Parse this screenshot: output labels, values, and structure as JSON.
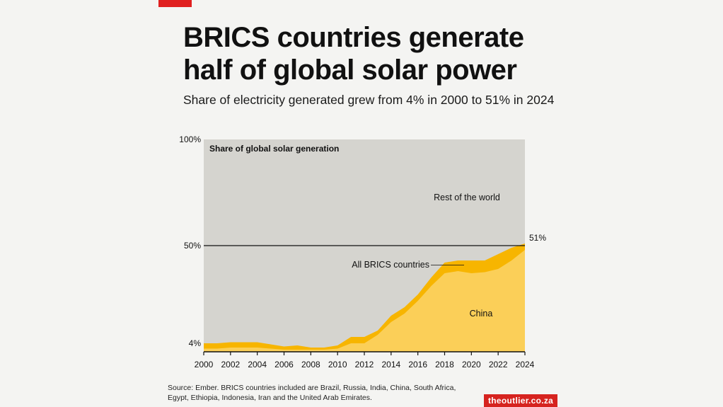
{
  "header": {
    "title_line1": "BRICS countries generate",
    "title_line2": "half of global solar power",
    "subtitle": "Share of electricity generated grew from 4% in 2000 to 51% in 2024"
  },
  "footer": {
    "source_line1": "Source: Ember. BRICS countries included are Brazil, Russia, India, China, South Africa,",
    "source_line2": "Egypt, Ethiopia, Indonesia, Iran and the United Arab Emirates.",
    "brand": "theoutlier.co.za"
  },
  "colors": {
    "accent": "#e02020",
    "rest_of_world": "#d5d4cf",
    "brics": "#f7b500",
    "china": "#fbcf58",
    "brand_bg": "#d6231f"
  },
  "chart_data": {
    "type": "area",
    "title": "Share of global solar generation",
    "x": [
      2000,
      2001,
      2002,
      2003,
      2004,
      2005,
      2006,
      2007,
      2008,
      2009,
      2010,
      2011,
      2012,
      2013,
      2014,
      2015,
      2016,
      2017,
      2018,
      2019,
      2020,
      2021,
      2022,
      2023,
      2024
    ],
    "x_ticks": [
      "2000",
      "2002",
      "2004",
      "2006",
      "2008",
      "2010",
      "2012",
      "2014",
      "2016",
      "2018",
      "2020",
      "2022",
      "2024"
    ],
    "y_ticks": [
      "100%",
      "50%",
      "4%"
    ],
    "y_tick_values": [
      100,
      50,
      4
    ],
    "ylim": [
      0,
      100
    ],
    "series": [
      {
        "name": "China",
        "values": [
          1.5,
          1.5,
          2,
          2,
          2,
          1.5,
          1,
          1,
          1,
          1,
          1.5,
          4,
          4,
          8,
          14,
          18,
          24,
          31,
          37,
          38,
          37,
          37.5,
          39,
          43,
          48
        ]
      },
      {
        "name": "All BRICS countries",
        "values": [
          4,
          4,
          4.5,
          4.5,
          4.5,
          3.5,
          2.5,
          3,
          2,
          2,
          3,
          7,
          7,
          10,
          17,
          21,
          27,
          35,
          42,
          43,
          43,
          43,
          46,
          49,
          51
        ]
      },
      {
        "name": "Rest of the world",
        "values": [
          100,
          100,
          100,
          100,
          100,
          100,
          100,
          100,
          100,
          100,
          100,
          100,
          100,
          100,
          100,
          100,
          100,
          100,
          100,
          100,
          100,
          100,
          100,
          100,
          100
        ]
      }
    ],
    "reference_line": 50,
    "end_label": "51%",
    "annotations": {
      "rest_of_world": "Rest of the world",
      "brics": "All BRICS countries",
      "china": "China"
    }
  }
}
